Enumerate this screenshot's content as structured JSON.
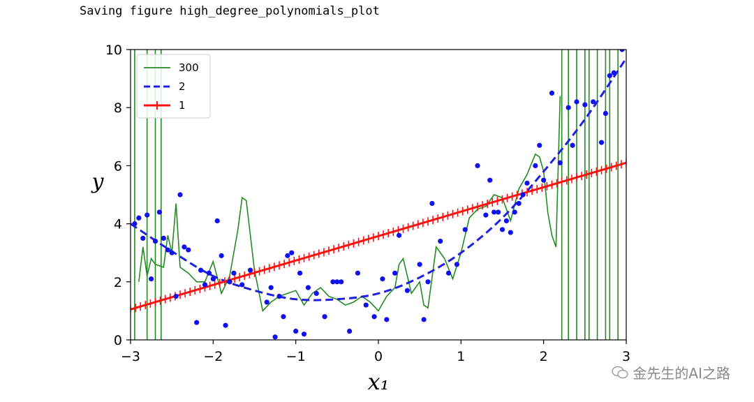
{
  "console": {
    "text": "Saving figure high_degree_polynomials_plot"
  },
  "watermark": {
    "text": "金先生的AI之路"
  },
  "chart_data": {
    "type": "line",
    "xlabel": "x₁",
    "ylabel": "y",
    "xlim": [
      -3,
      3
    ],
    "ylim": [
      0,
      10
    ],
    "xticks": [
      "−3",
      "−2",
      "−1",
      "0",
      "1",
      "2",
      "3"
    ],
    "yticks": [
      "0",
      "2",
      "4",
      "6",
      "8",
      "10"
    ],
    "grid": false,
    "legend": {
      "placement": "top-left",
      "entries": [
        "300",
        "2",
        "1"
      ]
    },
    "colors": {
      "deg300": "#228B22",
      "deg2": "#1f1fe0",
      "deg1": "#ff1010",
      "points": "#1010ee"
    },
    "series": [
      {
        "name": "300",
        "style": "solid-green",
        "x": [
          -2.9,
          -2.85,
          -2.8,
          -2.75,
          -2.7,
          -2.6,
          -2.55,
          -2.5,
          -2.45,
          -2.4,
          -2.35,
          -2.3,
          -2.2,
          -2.1,
          -2.0,
          -1.9,
          -1.8,
          -1.7,
          -1.65,
          -1.6,
          -1.55,
          -1.5,
          -1.4,
          -1.3,
          -1.2,
          -1.1,
          -1.0,
          -0.9,
          -0.8,
          -0.7,
          -0.6,
          -0.5,
          -0.4,
          -0.3,
          -0.2,
          -0.1,
          0.0,
          0.1,
          0.2,
          0.25,
          0.3,
          0.4,
          0.5,
          0.55,
          0.6,
          0.7,
          0.8,
          0.9,
          1.0,
          1.1,
          1.2,
          1.3,
          1.4,
          1.5,
          1.6,
          1.7,
          1.8,
          1.9,
          1.95,
          2.0,
          2.05,
          2.1,
          2.15,
          2.2
        ],
        "y": [
          2.0,
          3.2,
          2.2,
          2.8,
          2.6,
          2.5,
          3.6,
          3.0,
          4.7,
          2.5,
          2.4,
          2.3,
          2.0,
          2.0,
          2.7,
          1.6,
          2.2,
          3.8,
          4.9,
          4.8,
          3.6,
          2.4,
          1.0,
          1.3,
          1.5,
          1.6,
          1.7,
          1.2,
          1.6,
          1.8,
          1.5,
          1.4,
          1.2,
          1.3,
          1.5,
          1.3,
          1.0,
          1.5,
          1.8,
          2.6,
          2.8,
          1.6,
          2.0,
          1.2,
          1.1,
          3.2,
          2.8,
          2.1,
          3.0,
          4.2,
          4.5,
          4.6,
          5.0,
          4.9,
          4.1,
          5.2,
          5.7,
          6.4,
          6.3,
          5.8,
          4.4,
          3.6,
          3.2,
          8.4
        ]
      },
      {
        "name": "2",
        "style": "dashed-blue",
        "x": [
          -3,
          -2.5,
          -2,
          -1.5,
          -1,
          -0.5,
          0,
          0.5,
          1,
          1.5,
          2,
          2.5,
          3
        ],
        "y": [
          4.0,
          3.05,
          2.2,
          1.7,
          1.4,
          1.4,
          1.6,
          2.15,
          3.0,
          4.2,
          5.8,
          7.6,
          9.7
        ]
      },
      {
        "name": "1",
        "style": "red-plus",
        "x": [
          -3,
          3
        ],
        "y": [
          1.05,
          6.1
        ]
      }
    ],
    "points": {
      "x": [
        -2.95,
        -2.9,
        -2.85,
        -2.8,
        -2.75,
        -2.7,
        -2.65,
        -2.6,
        -2.55,
        -2.5,
        -2.45,
        -2.4,
        -2.35,
        -2.3,
        -2.2,
        -2.15,
        -2.1,
        -2.05,
        -2.0,
        -1.95,
        -1.9,
        -1.85,
        -1.8,
        -1.75,
        -1.65,
        -1.55,
        -1.35,
        -1.3,
        -1.25,
        -1.2,
        -1.15,
        -1.1,
        -1.05,
        -1.0,
        -0.95,
        -0.9,
        -0.85,
        -0.75,
        -0.65,
        -0.55,
        -0.5,
        -0.45,
        -0.35,
        -0.25,
        -0.15,
        -0.05,
        0.05,
        0.1,
        0.2,
        0.25,
        0.35,
        0.5,
        0.55,
        0.6,
        0.65,
        0.75,
        0.85,
        0.95,
        1.05,
        1.2,
        1.3,
        1.35,
        1.4,
        1.45,
        1.5,
        1.55,
        1.6,
        1.65,
        1.7,
        1.75,
        1.8,
        1.9,
        1.95,
        2.0,
        2.1,
        2.2,
        2.3,
        2.35,
        2.4,
        2.5,
        2.6,
        2.7,
        2.75,
        2.8,
        2.85,
        2.95
      ],
      "y": [
        4.0,
        4.2,
        3.5,
        4.3,
        2.1,
        3.4,
        4.4,
        3.5,
        3.1,
        3.0,
        1.5,
        5.0,
        3.2,
        3.1,
        0.6,
        2.4,
        1.9,
        2.3,
        2.1,
        4.1,
        2.9,
        0.5,
        2.0,
        2.3,
        1.9,
        2.4,
        1.3,
        1.8,
        0.1,
        1.5,
        0.8,
        2.9,
        3.0,
        0.3,
        2.3,
        0.2,
        1.8,
        1.6,
        0.8,
        2.0,
        2.0,
        2.0,
        0.3,
        2.3,
        1.2,
        0.8,
        2.1,
        0.7,
        2.3,
        3.6,
        1.7,
        2.6,
        0.7,
        2.0,
        4.7,
        3.4,
        2.3,
        2.6,
        3.8,
        6.0,
        4.3,
        5.5,
        4.4,
        4.4,
        3.8,
        4.1,
        3.7,
        4.4,
        4.7,
        5.0,
        5.4,
        6.0,
        6.7,
        5.5,
        8.5,
        6.1,
        8.0,
        6.7,
        8.2,
        8.1,
        8.2,
        6.8,
        7.8,
        9.1,
        9.2,
        10.0
      ]
    },
    "vertical_oscillations_x": [
      -2.95,
      -2.8,
      -2.7,
      -2.63,
      2.22,
      2.3,
      2.4,
      2.5,
      2.55,
      2.65,
      2.75,
      2.8,
      2.9
    ]
  }
}
